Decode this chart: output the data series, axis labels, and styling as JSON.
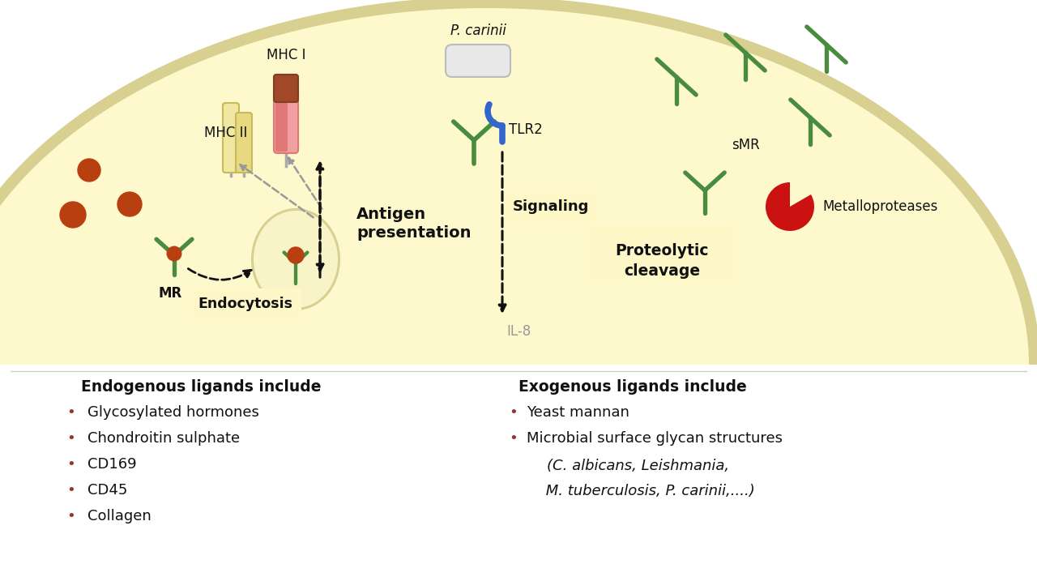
{
  "bg_color": "#ffffff",
  "cell_fill": "#fef9cc",
  "cell_edge": "#d8d090",
  "cell_edge2": "#e8e4b0",
  "green_color": "#4a8c3f",
  "orange_brown": "#b84010",
  "red_color": "#cc1111",
  "blue_color": "#3366cc",
  "gray_color": "#999999",
  "dark_color": "#111111",
  "tan1": "#e8d880",
  "tan2": "#c8b860",
  "tan_light": "#f0e8a0",
  "pink1": "#e07878",
  "pink_light": "#f0a0a0",
  "brown_top": "#a04828",
  "endogenous_title": "Endogenous ligands include",
  "endogenous_items": [
    "Glycosylated hormones",
    "Chondroitin sulphate",
    "CD169",
    "CD45",
    "Collagen"
  ],
  "exogenous_title": "Exogenous ligands include",
  "exogenous_items": [
    "Yeast mannan",
    "Microbial surface glycan structures"
  ],
  "exogenous_italic1": "(C. albicans, Leishmania,",
  "exogenous_italic2": " M. tuberculosis, P. carinii,....)",
  "label_MR": "MR",
  "label_MHCII": "MHC II",
  "label_MHCI": "MHC I",
  "label_TLR2": "TLR2",
  "label_sMR": "sMR",
  "label_Pcarinii": "P. carinii",
  "label_Metalloproteases": "Metalloproteases",
  "label_Endocytosis": "Endocytosis",
  "label_AP1": "Antigen",
  "label_AP2": "presentation",
  "label_Signaling": "Signaling",
  "label_IL8": "IL-8",
  "label_PC1": "Proteolytic",
  "label_PC2": "cleavage"
}
